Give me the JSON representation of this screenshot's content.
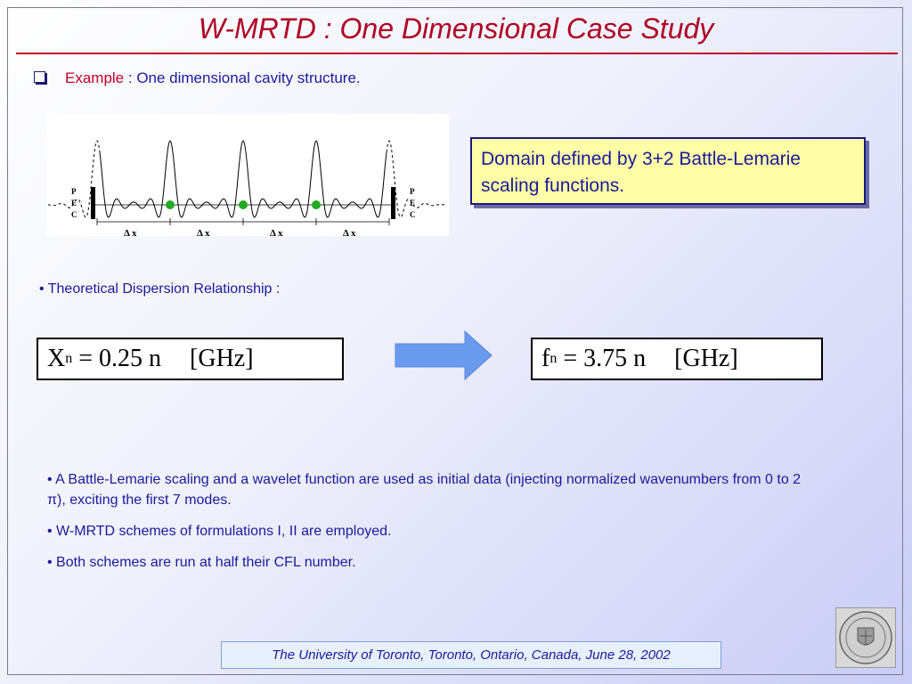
{
  "title": "W-MRTD : One Dimensional Case Study",
  "example": {
    "label": "Example",
    "separator": " : ",
    "text": "One dimensional cavity structure."
  },
  "figure": {
    "left_wall_label": [
      "P",
      "E",
      "C"
    ],
    "right_wall_label": [
      "P",
      "E",
      "C"
    ],
    "spacing_labels": [
      "Δ x",
      "Δ x",
      "Δ x",
      "Δ x"
    ]
  },
  "domain_note": "Domain defined by 3+2 Battle-Lemarie scaling functions.",
  "theory_heading": "• Theoretical Dispersion Relationship :",
  "formula_left": {
    "var": "X",
    "sub": "n",
    "rhs": "= 0.25 n",
    "unit": "[GHz]"
  },
  "formula_right": {
    "var": "f",
    "sub": "n",
    "rhs": "= 3.75 n",
    "unit": "[GHz]"
  },
  "bullets": [
    "• A Battle-Lemarie scaling and a wavelet function are used as initial data (injecting normalized wavenumbers from 0 to 2 π), exciting the first 7 modes.",
    "• W-MRTD schemes of formulations I, II are employed.",
    "•  Both schemes are run at half their CFL number."
  ],
  "footer": "The University of Toronto, Toronto, Ontario, Canada, June 28, 2002",
  "colors": {
    "title": "#b00024",
    "text": "#1a1a9a",
    "note_bg": "#ffffa8",
    "arrow": "#6699ee"
  }
}
